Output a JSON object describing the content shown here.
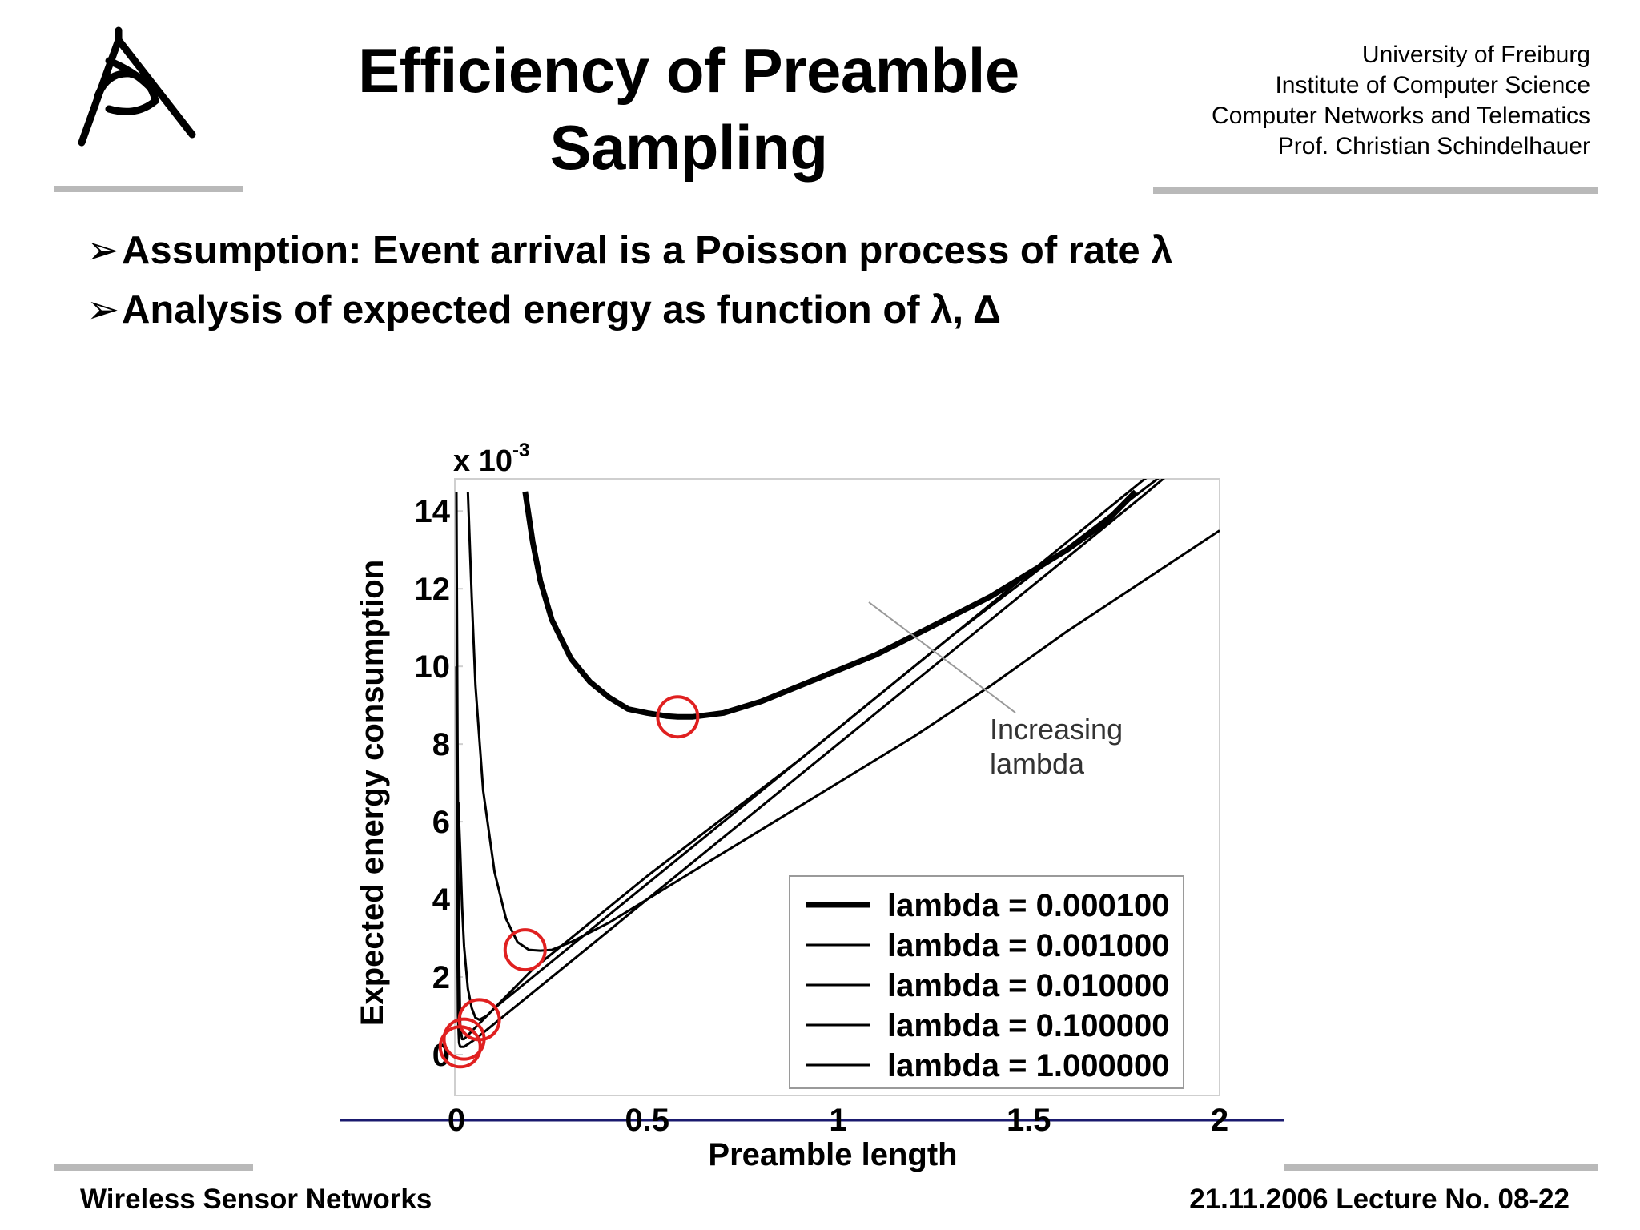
{
  "logo": {
    "icon": "university-eye-logo-icon"
  },
  "slide": {
    "title_line1": "Efficiency of Preamble",
    "title_line2": "Sampling"
  },
  "affiliation": [
    "University of Freiburg",
    "Institute of Computer Science",
    "Computer Networks and Telematics",
    "Prof. Christian Schindelhauer"
  ],
  "bullets": [
    {
      "marker": "➢",
      "text": "Assumption: Event arrival is a Poisson process of rate λ"
    },
    {
      "marker": "➢",
      "text": "Analysis of expected energy as function of λ, Δ"
    }
  ],
  "footer": {
    "left": "Wireless Sensor Networks",
    "right": "21.11.2006 Lecture No. 08-22"
  },
  "colors": {
    "rule": "#b9b9b9",
    "highlight_circle": "#e02020",
    "axis_line": "#1a1a6e"
  },
  "chart_data": {
    "type": "line",
    "xlabel": "Preamble length",
    "ylabel": "Expected energy consumption",
    "scale_label_prefix": "x 10",
    "scale_label_exp": "-3",
    "xlim": [
      0,
      2
    ],
    "ylim": [
      0,
      0.0145
    ],
    "xticks": [
      0,
      0.5,
      1,
      1.5,
      2
    ],
    "xtick_labels": [
      "0",
      "0.5",
      "1",
      "1.5",
      "2"
    ],
    "yticks": [
      0,
      0.002,
      0.004,
      0.006,
      0.008,
      0.01,
      0.012,
      0.014
    ],
    "ytick_labels": [
      "0",
      "2",
      "4",
      "6",
      "8",
      "10",
      "12",
      "14"
    ],
    "grid": false,
    "legend_position": "bottom-right",
    "annotation": {
      "line1": "Increasing",
      "line2": "lambda",
      "x": 1.45,
      "y": 0.0083
    },
    "series": [
      {
        "name": "lambda = 0.000100",
        "emphasis": "bold",
        "x": [
          0.18,
          0.2,
          0.22,
          0.25,
          0.3,
          0.35,
          0.4,
          0.45,
          0.5,
          0.55,
          0.58,
          0.62,
          0.7,
          0.8,
          0.9,
          1.0,
          1.1,
          1.2,
          1.3,
          1.4,
          1.5,
          1.6,
          1.7,
          1.78
        ],
        "y": [
          0.0145,
          0.0132,
          0.0122,
          0.0112,
          0.0102,
          0.0096,
          0.0092,
          0.0089,
          0.0088,
          0.00872,
          0.0087,
          0.0087,
          0.0088,
          0.0091,
          0.0095,
          0.0099,
          0.0103,
          0.0108,
          0.0113,
          0.0118,
          0.0124,
          0.013,
          0.0137,
          0.0145
        ]
      },
      {
        "name": "lambda = 0.001000",
        "x": [
          0.03,
          0.04,
          0.05,
          0.07,
          0.1,
          0.13,
          0.16,
          0.19,
          0.22,
          0.25,
          0.3,
          0.4,
          0.5,
          0.6,
          0.7,
          0.8,
          0.9,
          1.0,
          1.2,
          1.4,
          1.6,
          1.8,
          2.0
        ],
        "y": [
          0.0145,
          0.0118,
          0.0095,
          0.0068,
          0.0047,
          0.0035,
          0.0029,
          0.0027,
          0.00268,
          0.0027,
          0.0029,
          0.0034,
          0.004,
          0.0046,
          0.0052,
          0.0058,
          0.0064,
          0.007,
          0.0082,
          0.0095,
          0.0109,
          0.0122,
          0.0135
        ]
      },
      {
        "name": "lambda = 0.010000",
        "x": [
          0.005,
          0.01,
          0.015,
          0.02,
          0.03,
          0.04,
          0.05,
          0.06,
          0.08,
          0.1,
          0.15,
          0.2,
          0.3,
          0.5,
          0.7,
          0.9,
          1.1,
          1.3,
          1.5,
          1.7,
          1.9,
          2.0
        ],
        "y": [
          0.0065,
          0.0052,
          0.0038,
          0.0028,
          0.0017,
          0.0012,
          0.00095,
          0.0009,
          0.001,
          0.0012,
          0.0017,
          0.0022,
          0.003,
          0.0046,
          0.0061,
          0.0076,
          0.0092,
          0.0108,
          0.0123,
          0.0138,
          0.0153,
          0.016
        ]
      },
      {
        "name": "lambda = 0.100000",
        "x": [
          0.0,
          0.003,
          0.006,
          0.01,
          0.015,
          0.02,
          0.03,
          0.05,
          0.1,
          0.2,
          0.4,
          0.6,
          0.8,
          1.0,
          1.2,
          1.4,
          1.6,
          1.8,
          1.97
        ],
        "y": [
          0.0145,
          0.008,
          0.003,
          0.0007,
          0.0004,
          0.0004,
          0.0005,
          0.0007,
          0.0012,
          0.002,
          0.0036,
          0.0052,
          0.0068,
          0.0084,
          0.01,
          0.0116,
          0.0132,
          0.0148,
          0.016
        ]
      },
      {
        "name": "lambda = 1.000000",
        "x": [
          0.0,
          0.002,
          0.004,
          0.007,
          0.01,
          0.015,
          0.02,
          0.05,
          0.1,
          0.2,
          0.4,
          0.6,
          0.8,
          1.0,
          1.2,
          1.4,
          1.6,
          1.8,
          1.97
        ],
        "y": [
          0.01,
          0.004,
          0.001,
          0.0003,
          0.0002,
          0.0002,
          0.0002,
          0.0004,
          0.0008,
          0.0016,
          0.0032,
          0.0048,
          0.0064,
          0.008,
          0.0096,
          0.0112,
          0.0128,
          0.0144,
          0.0158
        ]
      }
    ],
    "minima": [
      {
        "x": 0.58,
        "y": 0.0087
      },
      {
        "x": 0.18,
        "y": 0.0027
      },
      {
        "x": 0.06,
        "y": 0.0009
      },
      {
        "x": 0.02,
        "y": 0.0004
      },
      {
        "x": 0.01,
        "y": 0.0002
      }
    ]
  }
}
